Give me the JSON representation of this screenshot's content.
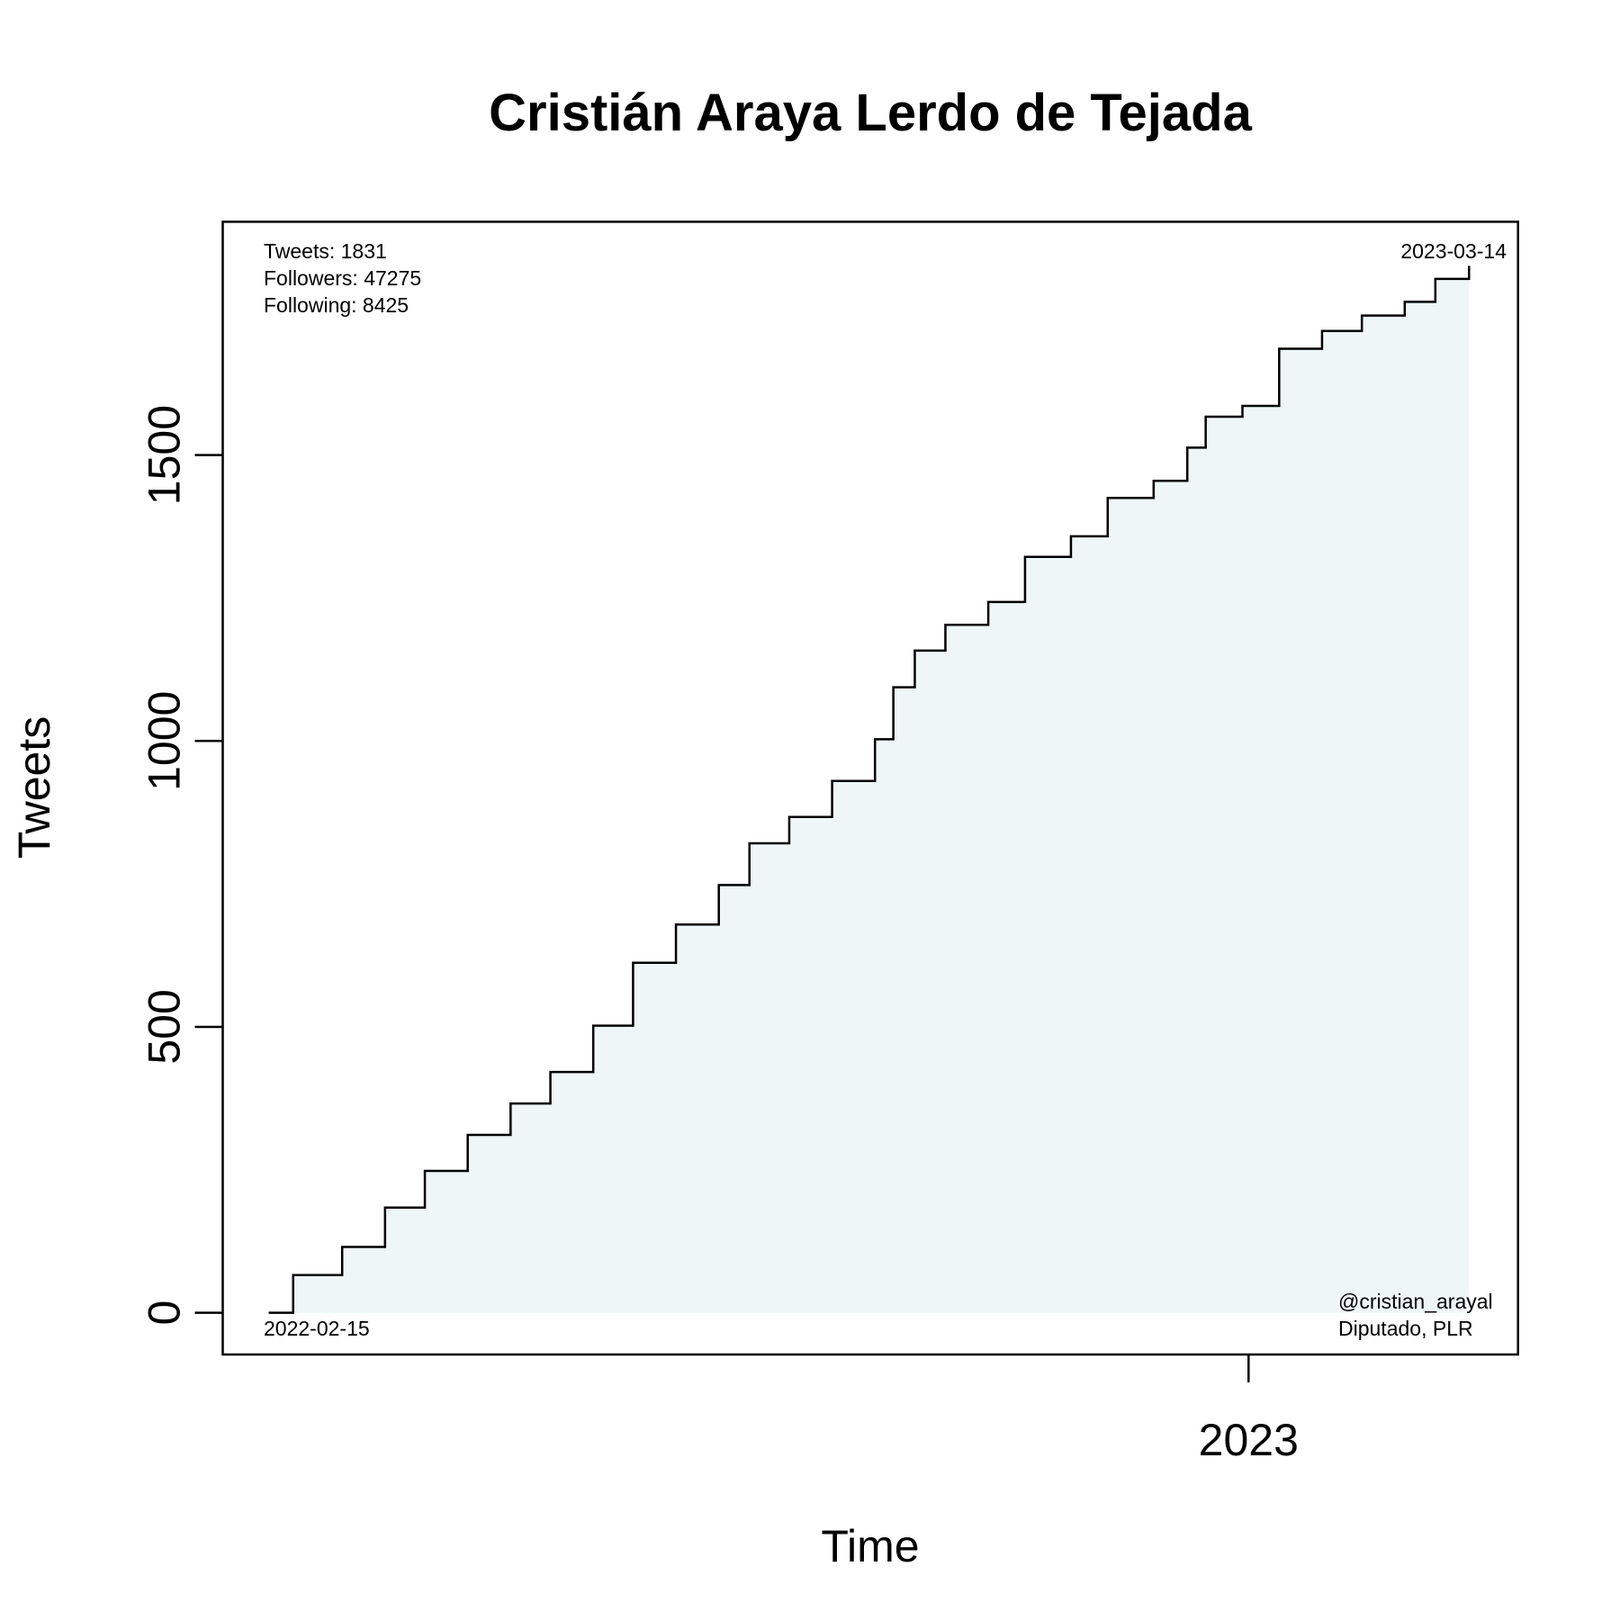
{
  "chart_data": {
    "type": "step-area",
    "title": "Cristián Araya Lerdo de Tejada",
    "x_label": "Time",
    "y_label": "Tweets",
    "x": [
      "2022-02-15",
      "2022-02-23",
      "2022-03-11",
      "2022-03-25",
      "2022-04-07",
      "2022-04-21",
      "2022-05-05",
      "2022-05-18",
      "2022-06-01",
      "2022-06-14",
      "2022-06-28",
      "2022-07-12",
      "2022-07-22",
      "2022-08-04",
      "2022-08-18",
      "2022-09-01",
      "2022-09-07",
      "2022-09-14",
      "2022-09-24",
      "2022-10-08",
      "2022-10-20",
      "2022-11-04",
      "2022-11-16",
      "2022-12-01",
      "2022-12-12",
      "2022-12-18",
      "2022-12-30",
      "2023-01-11",
      "2023-01-25",
      "2023-02-07",
      "2023-02-21",
      "2023-03-03",
      "2023-03-14"
    ],
    "values": [
      0,
      66,
      115,
      184,
      248,
      311,
      366,
      421,
      502,
      612,
      679,
      748,
      821,
      867,
      930,
      1003,
      1094,
      1158,
      1203,
      1243,
      1322,
      1358,
      1425,
      1455,
      1513,
      1567,
      1586,
      1686,
      1717,
      1744,
      1768,
      1808,
      1831
    ],
    "line_color": "#000000",
    "fill_color": "#eef6f8",
    "xlim": [
      "2022-01-31",
      "2023-03-30"
    ],
    "xticks": [
      {
        "value": "2023-01-01",
        "label": "2023"
      }
    ],
    "ylim": [
      -73,
      1908
    ],
    "yticks": [
      0,
      500,
      1000,
      1500
    ],
    "annotations": {
      "top_left": [
        "Tweets: 1831",
        "Followers: 47275",
        "Following: 8425"
      ],
      "top_right": "2023-03-14",
      "bottom_left": "2022-02-15",
      "bottom_right": [
        "@cristian_arayal",
        "Diputado, PLR"
      ]
    }
  }
}
